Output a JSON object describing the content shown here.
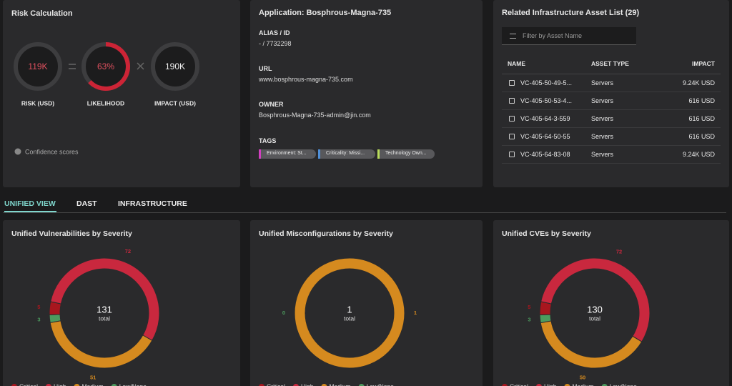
{
  "risk_calculation": {
    "title": "Risk Calculation",
    "risk": {
      "label": "119K",
      "caption": "RISK (USD)"
    },
    "likelihood": {
      "value": 63,
      "label": "63%",
      "caption": "LIKELIHOOD"
    },
    "impact": {
      "label": "190K",
      "caption": "IMPACT (USD)"
    },
    "confidence": "Confidence scores"
  },
  "application": {
    "title": "Application: Bosphrous-Magna-735",
    "fields": [
      {
        "label": "ALIAS / ID",
        "value": "- / 7732298"
      },
      {
        "label": "URL",
        "value": "www.bosphrous-magna-735.com"
      },
      {
        "label": "OWNER",
        "value": "Bosphrous-Magna-735-admin@jin.com"
      }
    ],
    "tags_label": "TAGS",
    "tags": [
      {
        "text": "Environment: St...",
        "color": "#d23fc0"
      },
      {
        "text": "Criticality: Missi...",
        "color": "#4f8fd8"
      },
      {
        "text": "Technology Own...",
        "color": "#b9dc5a"
      }
    ]
  },
  "assets": {
    "title": "Related Infrastructure Asset List (29)",
    "filter_placeholder": "Filter by Asset Name",
    "columns": [
      "NAME",
      "ASSET TYPE",
      "IMPACT"
    ],
    "rows": [
      [
        "VC-405-50-49-5...",
        "Servers",
        "9.24K USD"
      ],
      [
        "VC-405-50-53-4...",
        "Servers",
        "616 USD"
      ],
      [
        "VC-405-64-3-559",
        "Servers",
        "616 USD"
      ],
      [
        "VC-405-64-50-55",
        "Servers",
        "616 USD"
      ],
      [
        "VC-405-64-83-08",
        "Servers",
        "9.24K USD"
      ]
    ]
  },
  "tabs": [
    {
      "label": "UNIFIED VIEW",
      "active": true
    },
    {
      "label": "DAST",
      "active": false
    },
    {
      "label": "INFRASTRUCTURE",
      "active": false
    }
  ],
  "charts": [
    {
      "type": "donut",
      "title": "Unified Vulnerabilities by Severity",
      "total": 131,
      "total_label": "total",
      "segments": [
        {
          "name": "High",
          "value": 72,
          "color": "#c9283e"
        },
        {
          "name": "Medium",
          "value": 51,
          "color": "#d58a1f"
        },
        {
          "name": "Low/None",
          "value": 3,
          "color": "#4c9a5e"
        },
        {
          "name": "Critical",
          "value": 5,
          "color": "#a8161e"
        }
      ],
      "legend": [
        {
          "name": "Critical",
          "color": "#a8161e"
        },
        {
          "name": "High",
          "color": "#c9283e"
        },
        {
          "name": "Medium",
          "color": "#d58a1f"
        },
        {
          "name": "Low/None",
          "color": "#4c9a5e"
        }
      ]
    },
    {
      "type": "donut",
      "title": "Unified Misconfigurations by Severity",
      "total": 1,
      "total_label": "total",
      "segments": [
        {
          "name": "Low/None",
          "value": 0,
          "color": "#4c9a5e"
        },
        {
          "name": "Medium",
          "value": 1,
          "color": "#d58a1f"
        }
      ],
      "legend": [
        {
          "name": "Critical",
          "color": "#a8161e"
        },
        {
          "name": "High",
          "color": "#c9283e"
        },
        {
          "name": "Medium",
          "color": "#d58a1f"
        },
        {
          "name": "Low/None",
          "color": "#4c9a5e"
        }
      ]
    },
    {
      "type": "donut",
      "title": "Unified CVEs by Severity",
      "total": 130,
      "total_label": "total",
      "segments": [
        {
          "name": "High",
          "value": 72,
          "color": "#c9283e"
        },
        {
          "name": "Medium",
          "value": 50,
          "color": "#d58a1f"
        },
        {
          "name": "Low/None",
          "value": 3,
          "color": "#4c9a5e"
        },
        {
          "name": "Critical",
          "value": 5,
          "color": "#a8161e"
        }
      ],
      "legend": [
        {
          "name": "Critical",
          "color": "#a8161e"
        },
        {
          "name": "High",
          "color": "#c9283e"
        },
        {
          "name": "Medium",
          "color": "#d58a1f"
        },
        {
          "name": "Low/None",
          "color": "#4c9a5e"
        }
      ]
    }
  ]
}
